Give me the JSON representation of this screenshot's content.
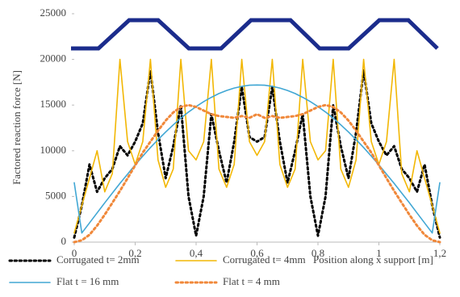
{
  "chart_data": {
    "type": "line",
    "y_label": "Factored reaction force [N]",
    "x_label": "Position along x support  [m]",
    "x": [
      0,
      0.025,
      0.05,
      0.075,
      0.1,
      0.125,
      0.15,
      0.175,
      0.2,
      0.225,
      0.25,
      0.275,
      0.3,
      0.325,
      0.35,
      0.375,
      0.4,
      0.425,
      0.45,
      0.475,
      0.5,
      0.525,
      0.55,
      0.575,
      0.6,
      0.625,
      0.65,
      0.675,
      0.7,
      0.725,
      0.75,
      0.775,
      0.8,
      0.825,
      0.85,
      0.875,
      0.9,
      0.925,
      0.95,
      0.975,
      1,
      1.025,
      1.05,
      1.075,
      1.1,
      1.125,
      1.15,
      1.175,
      1.2
    ],
    "series": [
      {
        "name": "Corrugated t= 2mm",
        "color": "#000000",
        "dash": "dot",
        "values": [
          500,
          4000,
          8500,
          5500,
          7000,
          8000,
          10500,
          9500,
          11000,
          13000,
          18800,
          12000,
          7000,
          10500,
          15000,
          5000,
          700,
          5000,
          14000,
          10000,
          6500,
          11000,
          17000,
          11500,
          11000,
          11500,
          17000,
          11000,
          6500,
          10000,
          14000,
          5000,
          700,
          5000,
          15000,
          10500,
          7000,
          12000,
          18800,
          13000,
          11000,
          9500,
          10500,
          8000,
          7000,
          5500,
          8500,
          4000,
          500
        ]
      },
      {
        "name": "Corrugated t= 4mm",
        "color": "#f2b705",
        "dash": "solid",
        "values": [
          1000,
          4000,
          7000,
          10000,
          5500,
          7500,
          20000,
          11000,
          8500,
          11000,
          20000,
          9000,
          6000,
          8000,
          20000,
          10000,
          9000,
          11000,
          20000,
          8000,
          6000,
          8500,
          20000,
          11000,
          9500,
          11000,
          20000,
          8500,
          6000,
          8000,
          20000,
          11000,
          9000,
          10000,
          20000,
          8000,
          6000,
          9000,
          20000,
          11000,
          8500,
          11000,
          20000,
          7500,
          5500,
          10000,
          7000,
          4000,
          1000
        ]
      },
      {
        "name": "Flat t = 16 mm",
        "color": "#41a7d4",
        "dash": "solid",
        "values": [
          6500,
          1000,
          2100,
          3200,
          4300,
          5370,
          6430,
          7450,
          8450,
          9410,
          10350,
          11220,
          12050,
          12840,
          13570,
          14240,
          14830,
          15380,
          15850,
          16260,
          16600,
          16860,
          17050,
          17170,
          17200,
          17170,
          17050,
          16860,
          16600,
          16260,
          15850,
          15380,
          14830,
          14240,
          13570,
          12840,
          12050,
          11220,
          10350,
          9410,
          8450,
          7450,
          6430,
          5370,
          4300,
          3200,
          2100,
          1000,
          6500
        ]
      },
      {
        "name": "Flat t = 4 mm",
        "color": "#f0883a",
        "dash": "dot",
        "values": [
          0,
          200,
          800,
          1800,
          3000,
          4300,
          5600,
          7000,
          8400,
          9800,
          11000,
          12200,
          13300,
          14200,
          14800,
          15000,
          14800,
          14400,
          14000,
          13800,
          13700,
          13600,
          13800,
          13600,
          14000,
          13600,
          13800,
          13600,
          13700,
          13800,
          14000,
          14400,
          14800,
          15000,
          14800,
          14200,
          13300,
          12200,
          11000,
          9800,
          8400,
          7000,
          5600,
          4300,
          3000,
          1800,
          800,
          200,
          0
        ]
      }
    ],
    "xlim": [
      0,
      1.2
    ],
    "xticks": [
      0,
      {
        "value": 0.2,
        "label": "0,2"
      },
      {
        "value": 0.4,
        "label": "0,4"
      },
      {
        "value": 0.6,
        "label": "0,6"
      },
      {
        "value": 0.8,
        "label": "0,8"
      },
      1,
      {
        "value": 1.2,
        "label": "1,2"
      }
    ],
    "ylim": [
      0,
      25000
    ],
    "yticks": [
      0,
      5000,
      10000,
      15000,
      20000,
      25000
    ],
    "grid": false
  }
}
